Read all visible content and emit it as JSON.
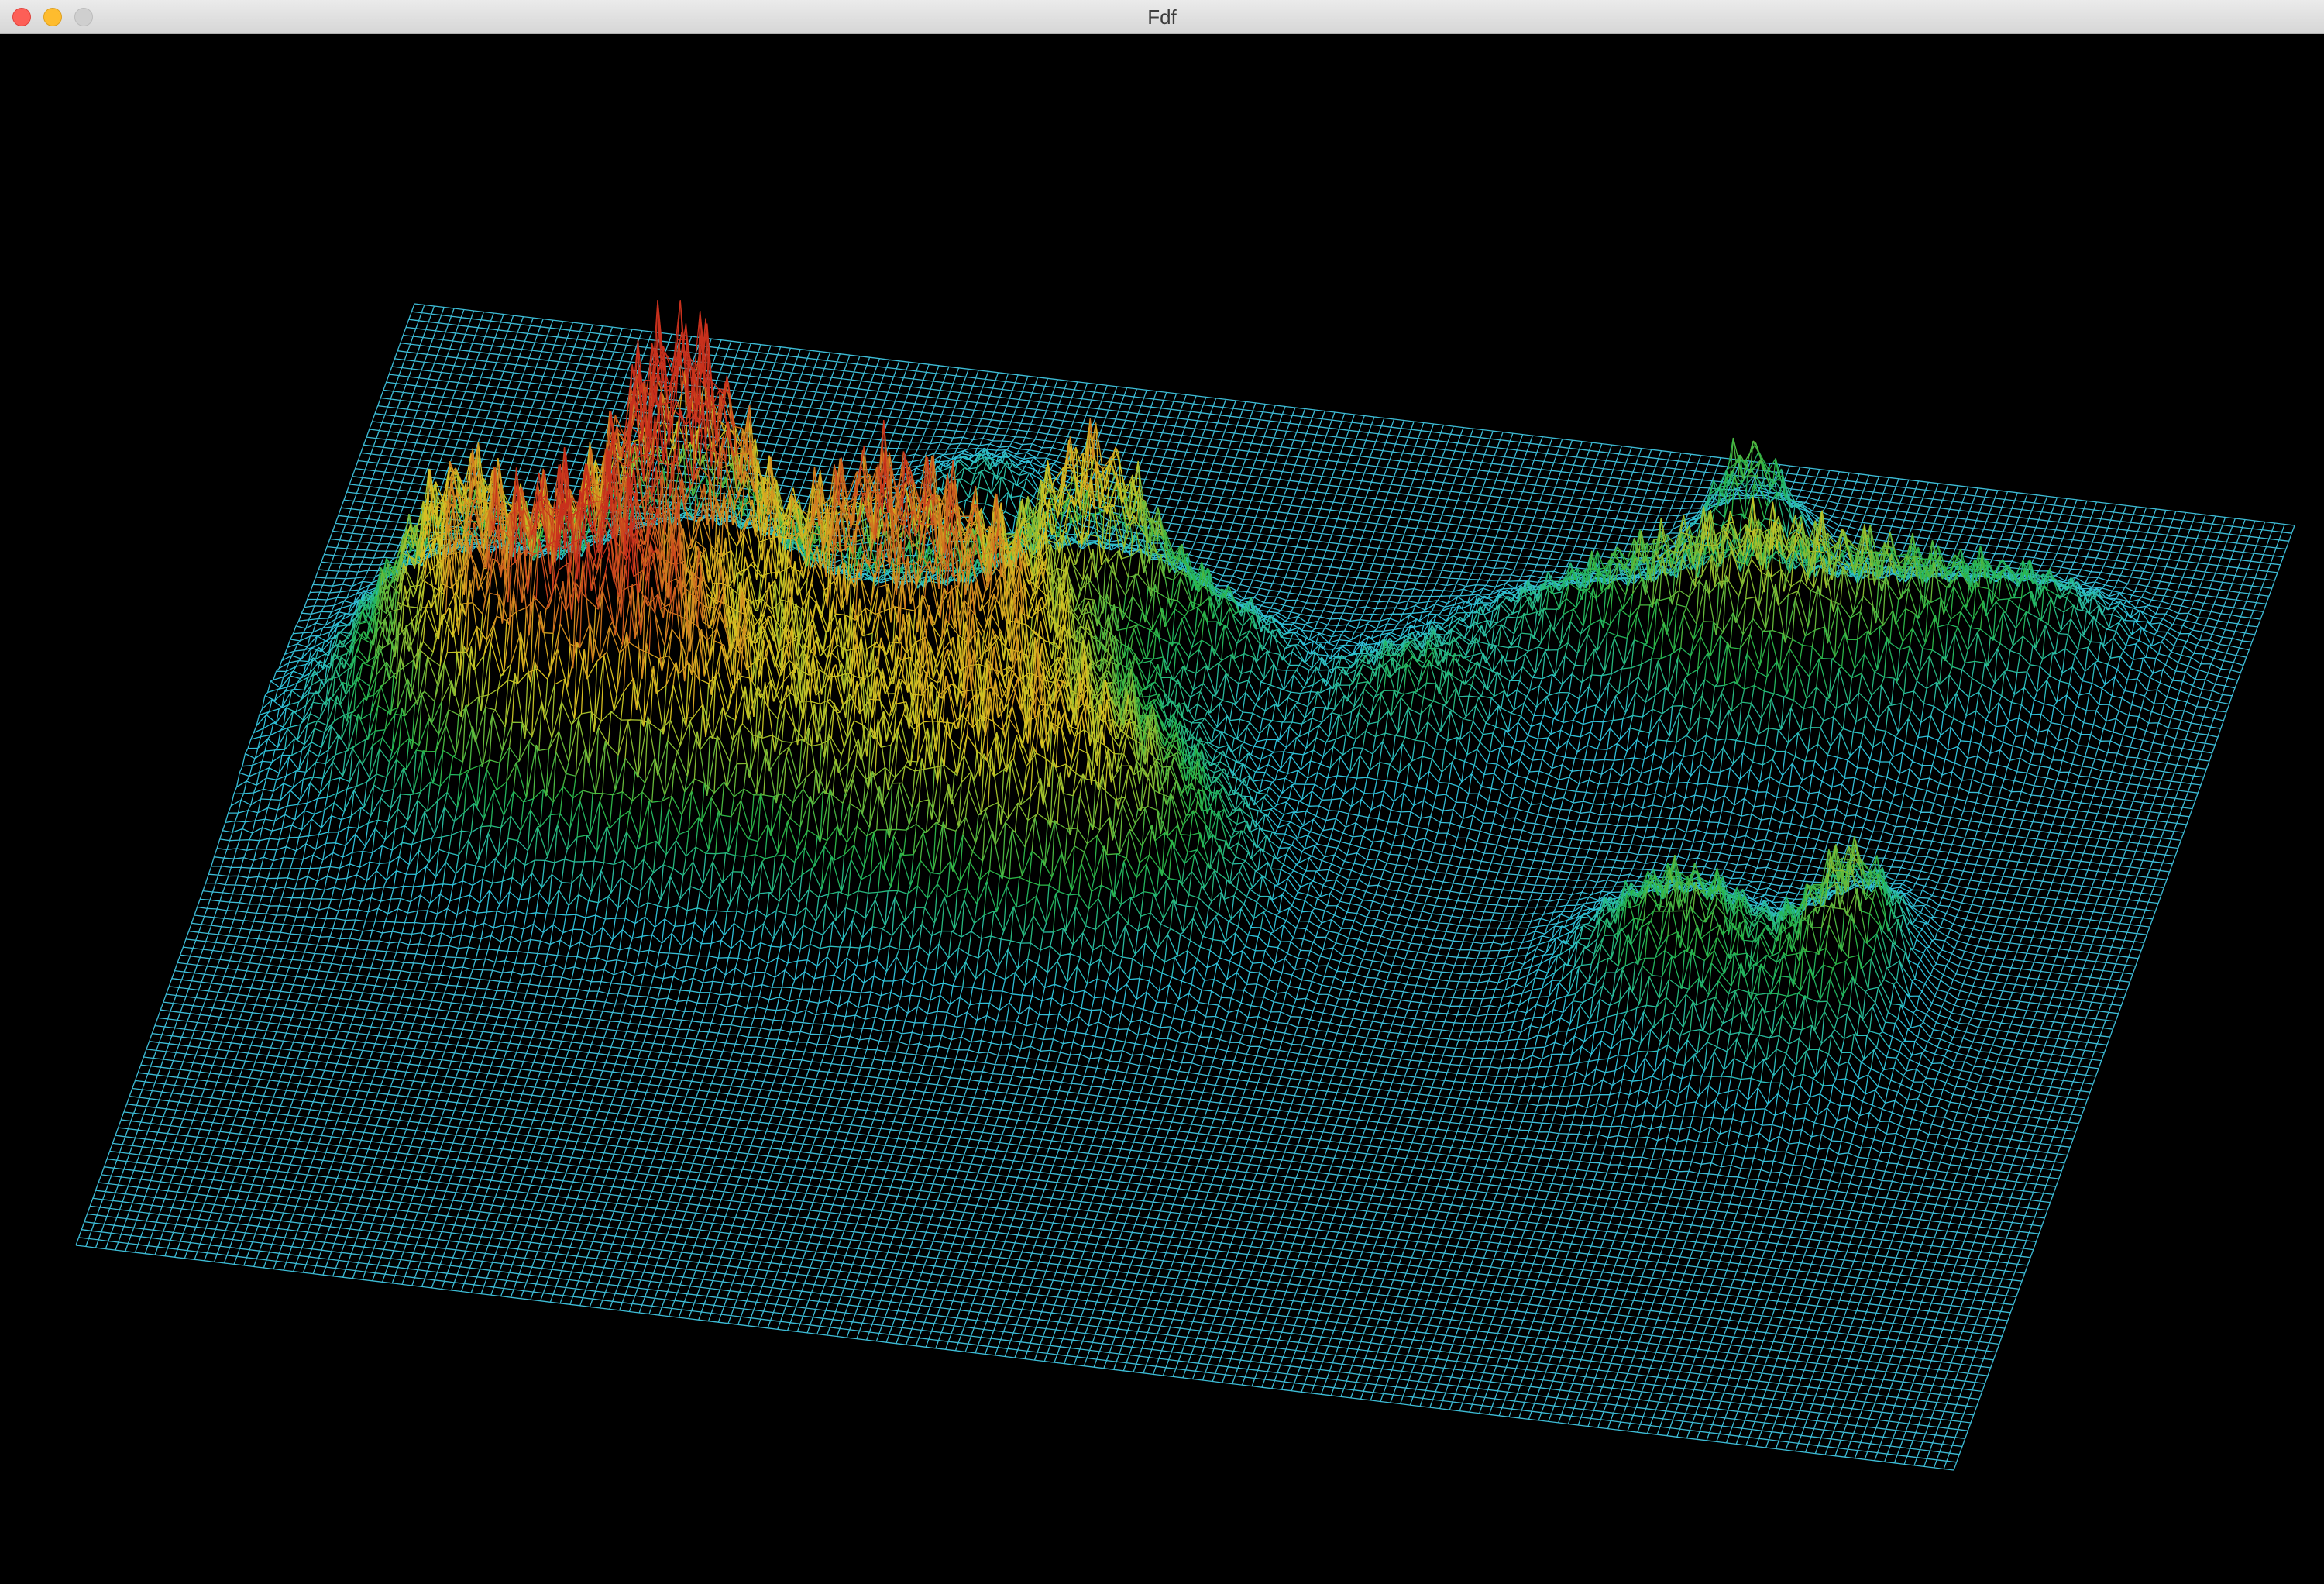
{
  "window": {
    "title": "Fdf"
  },
  "titlebar": {
    "close_label": "close",
    "minimize_label": "minimize",
    "zoom_label": "zoom"
  },
  "render": {
    "background_color": "#000000",
    "base_color": "#3dbcd6",
    "low_color": "#2fc0d8",
    "mid_color": "#22b34a",
    "high_color": "#d8c422",
    "peak_color": "#c8301c"
  },
  "icons": [
    "close-icon",
    "minimize-icon",
    "zoom-icon"
  ]
}
